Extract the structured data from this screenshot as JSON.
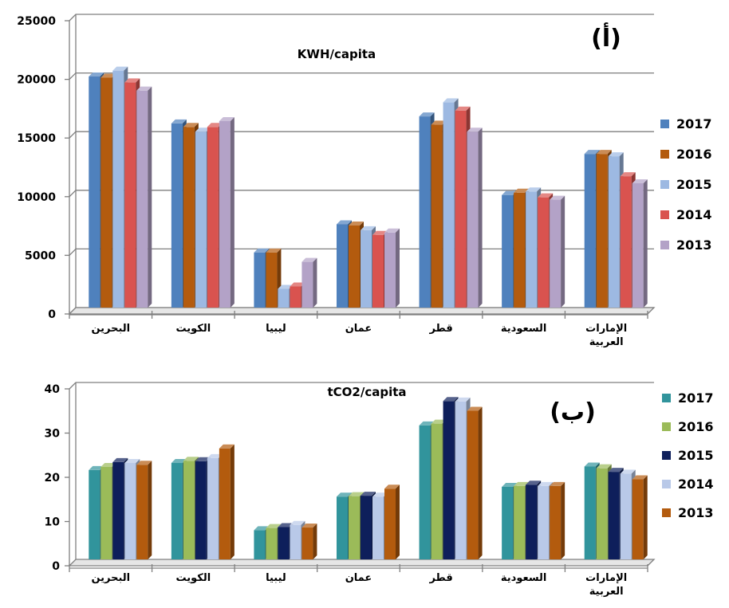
{
  "chart_data": [
    {
      "type": "bar",
      "panel_label": "(أ)",
      "title": "KWH/capita",
      "categories": [
        "البحرين",
        "الكويت",
        "ليبيا",
        "عمان",
        "قطر",
        "السعودية",
        "الإمارات العربية"
      ],
      "series": [
        {
          "name": "2017",
          "color": "#4f81bd",
          "values": [
            19700,
            15700,
            4700,
            7100,
            16300,
            9600,
            13100
          ]
        },
        {
          "name": "2016",
          "color": "#b35b0e",
          "values": [
            19600,
            15400,
            4700,
            7000,
            15600,
            9800,
            13100
          ]
        },
        {
          "name": "2015",
          "color": "#9db9e2",
          "values": [
            20200,
            15000,
            1600,
            6600,
            17500,
            9900,
            12900
          ]
        },
        {
          "name": "2014",
          "color": "#d9534f",
          "values": [
            19200,
            15400,
            1800,
            6200,
            16800,
            9400,
            11200
          ]
        },
        {
          "name": "2013",
          "color": "#b3a2c7",
          "values": [
            18500,
            15900,
            3900,
            6400,
            15000,
            9200,
            10600
          ]
        }
      ],
      "ylim": [
        0,
        25000
      ],
      "yticks": [
        "0",
        "5000",
        "10000",
        "15000",
        "20000",
        "25000"
      ],
      "grid": true,
      "legend_position": "right"
    },
    {
      "type": "bar",
      "panel_label": "(ب)",
      "title": "tCO2/capita",
      "categories": [
        "البحرين",
        "الكويت",
        "ليبيا",
        "عمان",
        "قطر",
        "السعودية",
        "الإمارات العربية"
      ],
      "series": [
        {
          "name": "2017",
          "color": "#31949c",
          "values": [
            20.2,
            21.8,
            6.6,
            14.2,
            30.3,
            16.4,
            21.0
          ]
        },
        {
          "name": "2016",
          "color": "#9bbb59",
          "values": [
            20.9,
            22.3,
            7.1,
            14.3,
            30.7,
            16.6,
            20.6
          ]
        },
        {
          "name": "2015",
          "color": "#0e1f5b",
          "values": [
            22.0,
            22.2,
            7.3,
            14.4,
            35.8,
            16.9,
            19.8
          ]
        },
        {
          "name": "2014",
          "color": "#b9c9e8",
          "values": [
            21.8,
            22.9,
            7.8,
            14.2,
            35.7,
            16.6,
            19.4
          ]
        },
        {
          "name": "2013",
          "color": "#b35b0e",
          "values": [
            21.4,
            25.1,
            7.2,
            16.0,
            33.6,
            16.6,
            18.1
          ]
        }
      ],
      "ylim": [
        0,
        40
      ],
      "yticks": [
        "0",
        "10",
        "20",
        "30",
        "40"
      ],
      "grid": false,
      "legend_position": "right"
    }
  ]
}
